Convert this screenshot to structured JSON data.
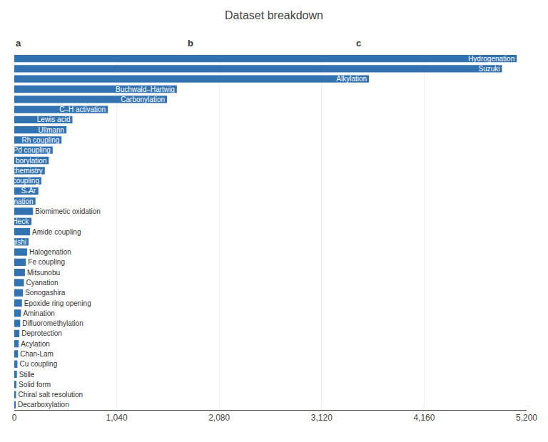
{
  "chart_data": {
    "type": "bar",
    "orientation": "horizontal",
    "title": "Dataset breakdown",
    "annotations": [
      "a",
      "b",
      "c"
    ],
    "categories": [
      "Hydrogenation",
      "Suzuki",
      "Alkylation",
      "Buchwald–Hartwig",
      "Carbonylation",
      "C–H activation",
      "Lewis acid",
      "Ullmann",
      "Rh coupling",
      "Pd coupling",
      "Pd borylation",
      "Photochemistry",
      "Ni coupling",
      "SₙAr",
      "Fluorination",
      "Biomimetic oxidation",
      "Heck",
      "Amide coupling",
      "Negishi",
      "Halogenation",
      "Fe coupling",
      "Mitsunobu",
      "Cyanation",
      "Sonogashira",
      "Epoxide ring opening",
      "Amination",
      "Difluoromethylation",
      "Deprotection",
      "Acylation",
      "Chan-Lam",
      "Cu coupling",
      "Stille",
      "Solid form",
      "Chiral salt resolution",
      "Decarboxylation"
    ],
    "values": [
      5100,
      4950,
      3600,
      1650,
      1550,
      950,
      590,
      530,
      480,
      390,
      350,
      310,
      275,
      245,
      215,
      190,
      175,
      160,
      145,
      130,
      118,
      108,
      98,
      88,
      78,
      68,
      60,
      52,
      45,
      38,
      32,
      27,
      22,
      18,
      14
    ],
    "color": "#3272b0",
    "xlim": [
      0,
      5200
    ],
    "xticks": [
      0,
      {
        "value": 1040,
        "label": "1,040"
      },
      {
        "value": 2080,
        "label": "2,080"
      },
      {
        "value": 3120,
        "label": "3,120"
      },
      {
        "value": 4160,
        "label": "4,160"
      },
      {
        "value": 5200,
        "label": "5,200"
      }
    ],
    "grid": true,
    "tick_labels": "x"
  }
}
